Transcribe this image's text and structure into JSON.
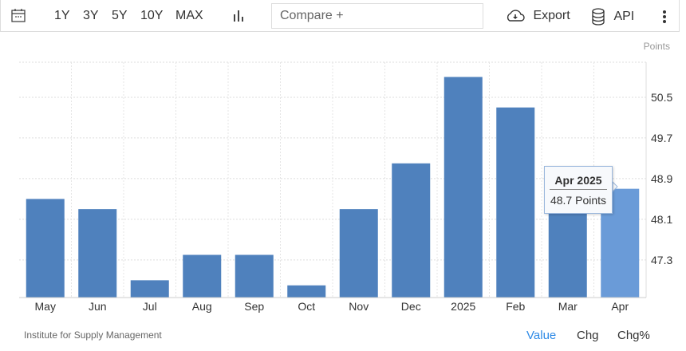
{
  "toolbar": {
    "ranges": [
      "1Y",
      "3Y",
      "5Y",
      "10Y",
      "MAX"
    ],
    "compare_placeholder": "Compare +",
    "export_label": "Export",
    "api_label": "API"
  },
  "units": "Points",
  "source": "Institute for Supply Management",
  "footer_tabs": [
    "Value",
    "Chg",
    "Chg%"
  ],
  "tooltip": {
    "title": "Apr 2025",
    "value": "48.7 Points"
  },
  "colors": {
    "bar": "#4f81bd",
    "bar_highlight": "#6a9bd8",
    "active_tab": "#2e8ae6"
  },
  "chart_data": {
    "type": "bar",
    "categories": [
      "May",
      "Jun",
      "Jul",
      "Aug",
      "Sep",
      "Oct",
      "Nov",
      "Dec",
      "2025",
      "Feb",
      "Mar",
      "Apr"
    ],
    "values": [
      48.5,
      48.3,
      46.9,
      47.4,
      47.4,
      46.8,
      48.3,
      49.2,
      50.9,
      50.3,
      49.0,
      48.7
    ],
    "yticks": [
      "47.3",
      "48.1",
      "48.9",
      "49.7",
      "50.5"
    ],
    "ylim": [
      46.56,
      51.19
    ],
    "ylabel": "Points",
    "grid": true,
    "highlighted": "Apr"
  }
}
